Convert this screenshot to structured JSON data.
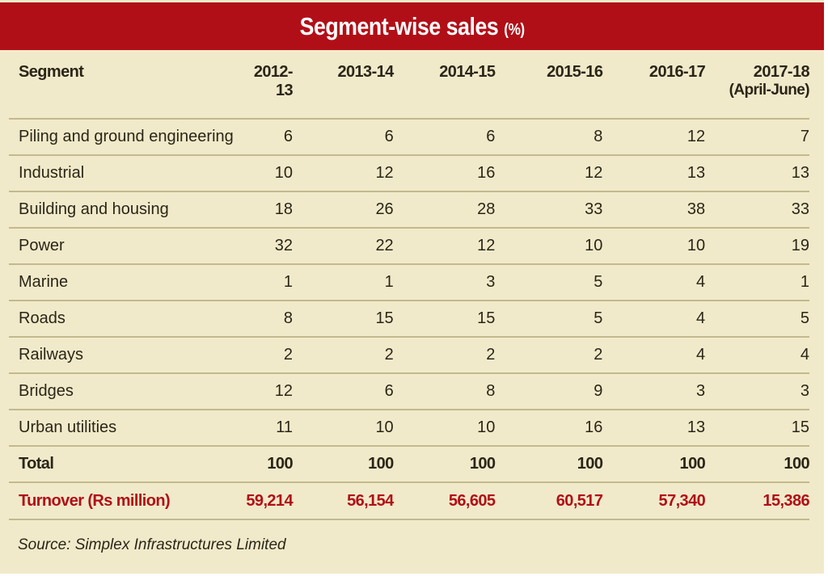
{
  "chart_data": {
    "type": "table",
    "title": "Segment-wise sales",
    "title_unit": "(%)",
    "columns": [
      {
        "label": "Segment",
        "sub": ""
      },
      {
        "label": "2012-13",
        "sub": ""
      },
      {
        "label": "2013-14",
        "sub": ""
      },
      {
        "label": "2014-15",
        "sub": ""
      },
      {
        "label": "2015-16",
        "sub": ""
      },
      {
        "label": "2016-17",
        "sub": ""
      },
      {
        "label": "2017-18",
        "sub": "(April-June)"
      }
    ],
    "rows": [
      {
        "segment": "Piling and ground engineering",
        "values": [
          "6",
          "6",
          "6",
          "8",
          "12",
          "7"
        ]
      },
      {
        "segment": "Industrial",
        "values": [
          "10",
          "12",
          "16",
          "12",
          "13",
          "13"
        ]
      },
      {
        "segment": "Building and housing",
        "values": [
          "18",
          "26",
          "28",
          "33",
          "38",
          "33"
        ]
      },
      {
        "segment": "Power",
        "values": [
          "32",
          "22",
          "12",
          "10",
          "10",
          "19"
        ]
      },
      {
        "segment": "Marine",
        "values": [
          "1",
          "1",
          "3",
          "5",
          "4",
          "1"
        ]
      },
      {
        "segment": "Roads",
        "values": [
          "8",
          "15",
          "15",
          "5",
          "4",
          "5"
        ]
      },
      {
        "segment": "Railways",
        "values": [
          "2",
          "2",
          "2",
          "2",
          "4",
          "4"
        ]
      },
      {
        "segment": "Bridges",
        "values": [
          "12",
          "6",
          "8",
          "9",
          "3",
          "3"
        ]
      },
      {
        "segment": "Urban utilities",
        "values": [
          "11",
          "10",
          "10",
          "16",
          "13",
          "15"
        ]
      }
    ],
    "total": {
      "label": "Total",
      "values": [
        "100",
        "100",
        "100",
        "100",
        "100",
        "100"
      ]
    },
    "turnover": {
      "label": "Turnover (Rs million)",
      "values": [
        "59,214",
        "56,154",
        "56,605",
        "60,517",
        "57,340",
        "15,386"
      ]
    },
    "source": "Source: Simplex Infrastructures Limited"
  },
  "colors": {
    "accent_red": "#b10f17",
    "background": "#f1eaca",
    "rule": "#c2b98e",
    "text": "#2b2518"
  }
}
